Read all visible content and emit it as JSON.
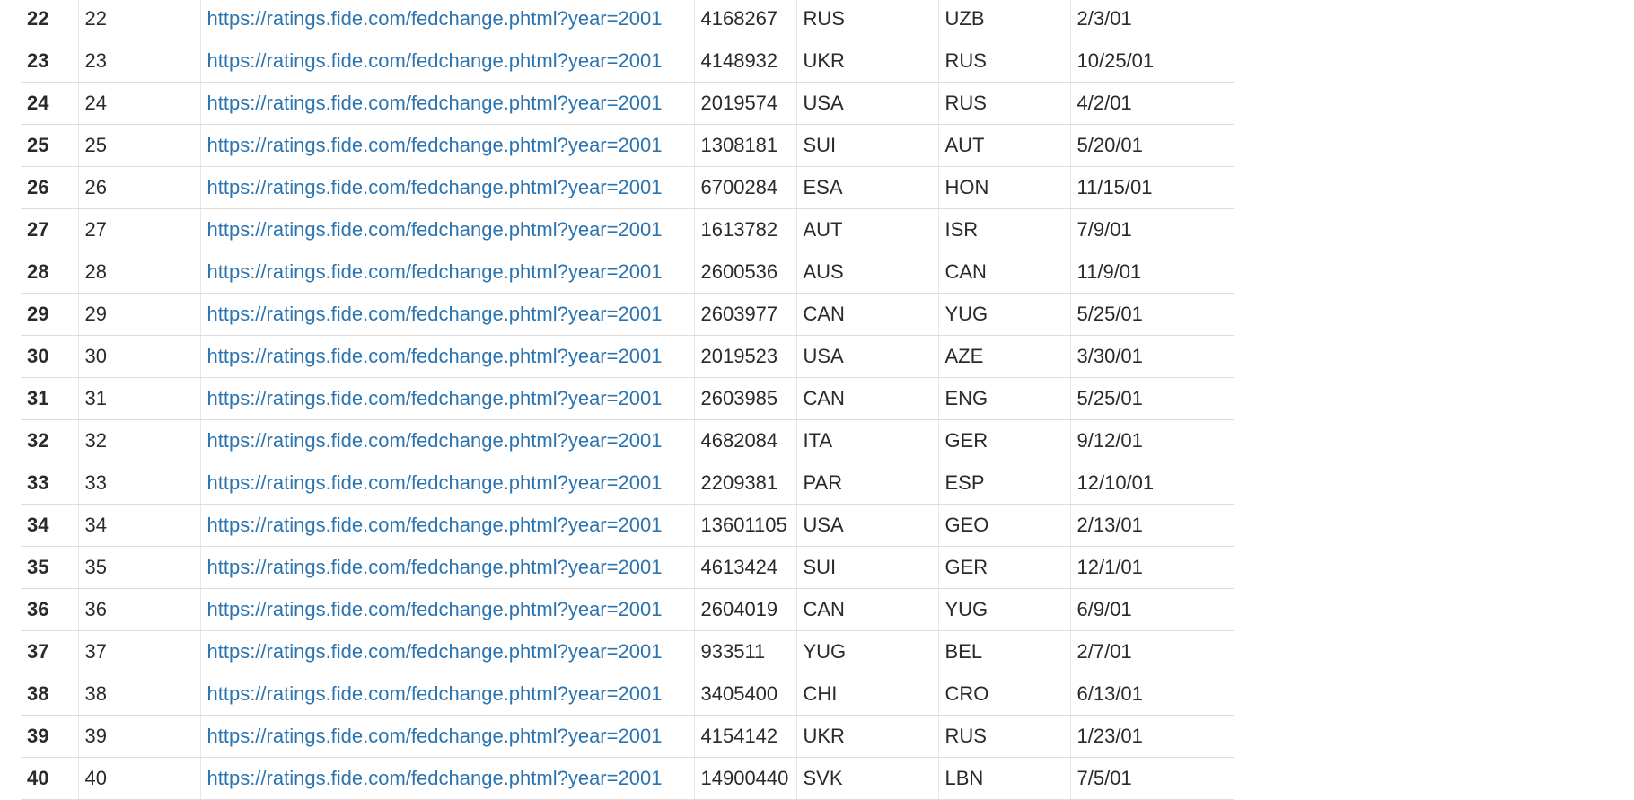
{
  "table": {
    "rows": [
      {
        "idx": "22",
        "num": "22",
        "url": "https://ratings.fide.com/fedchange.phtml?year=2001",
        "id": "4168267",
        "fed_from": "RUS",
        "fed_to": "UZB",
        "date": "2/3/01"
      },
      {
        "idx": "23",
        "num": "23",
        "url": "https://ratings.fide.com/fedchange.phtml?year=2001",
        "id": "4148932",
        "fed_from": "UKR",
        "fed_to": "RUS",
        "date": "10/25/01"
      },
      {
        "idx": "24",
        "num": "24",
        "url": "https://ratings.fide.com/fedchange.phtml?year=2001",
        "id": "2019574",
        "fed_from": "USA",
        "fed_to": "RUS",
        "date": "4/2/01"
      },
      {
        "idx": "25",
        "num": "25",
        "url": "https://ratings.fide.com/fedchange.phtml?year=2001",
        "id": "1308181",
        "fed_from": "SUI",
        "fed_to": "AUT",
        "date": "5/20/01"
      },
      {
        "idx": "26",
        "num": "26",
        "url": "https://ratings.fide.com/fedchange.phtml?year=2001",
        "id": "6700284",
        "fed_from": "ESA",
        "fed_to": "HON",
        "date": "11/15/01"
      },
      {
        "idx": "27",
        "num": "27",
        "url": "https://ratings.fide.com/fedchange.phtml?year=2001",
        "id": "1613782",
        "fed_from": "AUT",
        "fed_to": "ISR",
        "date": "7/9/01"
      },
      {
        "idx": "28",
        "num": "28",
        "url": "https://ratings.fide.com/fedchange.phtml?year=2001",
        "id": "2600536",
        "fed_from": "AUS",
        "fed_to": "CAN",
        "date": "11/9/01"
      },
      {
        "idx": "29",
        "num": "29",
        "url": "https://ratings.fide.com/fedchange.phtml?year=2001",
        "id": "2603977",
        "fed_from": "CAN",
        "fed_to": "YUG",
        "date": "5/25/01"
      },
      {
        "idx": "30",
        "num": "30",
        "url": "https://ratings.fide.com/fedchange.phtml?year=2001",
        "id": "2019523",
        "fed_from": "USA",
        "fed_to": "AZE",
        "date": "3/30/01"
      },
      {
        "idx": "31",
        "num": "31",
        "url": "https://ratings.fide.com/fedchange.phtml?year=2001",
        "id": "2603985",
        "fed_from": "CAN",
        "fed_to": "ENG",
        "date": "5/25/01"
      },
      {
        "idx": "32",
        "num": "32",
        "url": "https://ratings.fide.com/fedchange.phtml?year=2001",
        "id": "4682084",
        "fed_from": "ITA",
        "fed_to": "GER",
        "date": "9/12/01"
      },
      {
        "idx": "33",
        "num": "33",
        "url": "https://ratings.fide.com/fedchange.phtml?year=2001",
        "id": "2209381",
        "fed_from": "PAR",
        "fed_to": "ESP",
        "date": "12/10/01"
      },
      {
        "idx": "34",
        "num": "34",
        "url": "https://ratings.fide.com/fedchange.phtml?year=2001",
        "id": "13601105",
        "fed_from": "USA",
        "fed_to": "GEO",
        "date": "2/13/01"
      },
      {
        "idx": "35",
        "num": "35",
        "url": "https://ratings.fide.com/fedchange.phtml?year=2001",
        "id": "4613424",
        "fed_from": "SUI",
        "fed_to": "GER",
        "date": "12/1/01"
      },
      {
        "idx": "36",
        "num": "36",
        "url": "https://ratings.fide.com/fedchange.phtml?year=2001",
        "id": "2604019",
        "fed_from": "CAN",
        "fed_to": "YUG",
        "date": "6/9/01"
      },
      {
        "idx": "37",
        "num": "37",
        "url": "https://ratings.fide.com/fedchange.phtml?year=2001",
        "id": "933511",
        "fed_from": "YUG",
        "fed_to": "BEL",
        "date": "2/7/01"
      },
      {
        "idx": "38",
        "num": "38",
        "url": "https://ratings.fide.com/fedchange.phtml?year=2001",
        "id": "3405400",
        "fed_from": "CHI",
        "fed_to": "CRO",
        "date": "6/13/01"
      },
      {
        "idx": "39",
        "num": "39",
        "url": "https://ratings.fide.com/fedchange.phtml?year=2001",
        "id": "4154142",
        "fed_from": "UKR",
        "fed_to": "RUS",
        "date": "1/23/01"
      },
      {
        "idx": "40",
        "num": "40",
        "url": "https://ratings.fide.com/fedchange.phtml?year=2001",
        "id": "14900440",
        "fed_from": "SVK",
        "fed_to": "LBN",
        "date": "7/5/01"
      }
    ]
  },
  "colors": {
    "index": "#1f5f99",
    "link": "#2b74b0",
    "muted": "#707070",
    "text": "#2a2a2a",
    "border": "#dcdcdc"
  }
}
